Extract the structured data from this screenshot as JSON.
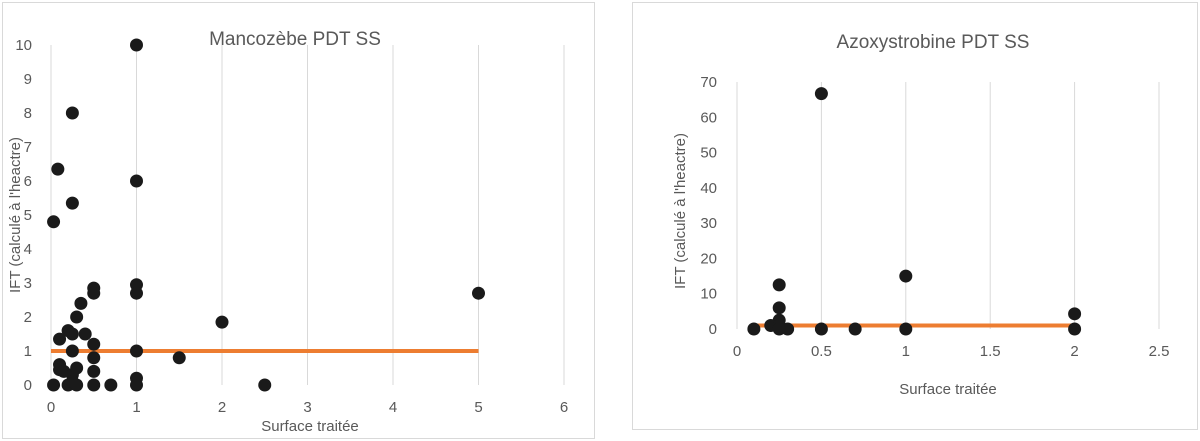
{
  "chart_data": [
    {
      "type": "scatter",
      "title": "Mancozèbe PDT SS",
      "xlabel": "Surface traitée",
      "ylabel": "IFT (calculé à l'heactre)",
      "xlim": [
        0,
        6
      ],
      "ylim": [
        0,
        10
      ],
      "xticks": [
        "0",
        "1",
        "2",
        "3",
        "4",
        "5",
        "6"
      ],
      "yticks": [
        "0",
        "1",
        "2",
        "3",
        "4",
        "5",
        "6",
        "7",
        "8",
        "9",
        "10"
      ],
      "grid": "vertical",
      "marker_color": "#1a1a1a",
      "line_color": "#ed7d31",
      "reference_line": {
        "x": [
          0,
          5
        ],
        "y": [
          1,
          1
        ]
      },
      "points": [
        {
          "x": 0.03,
          "y": 4.8
        },
        {
          "x": 0.03,
          "y": 0
        },
        {
          "x": 0.08,
          "y": 6.35
        },
        {
          "x": 0.1,
          "y": 0.6
        },
        {
          "x": 0.1,
          "y": 0.45
        },
        {
          "x": 0.1,
          "y": 1.35
        },
        {
          "x": 0.15,
          "y": 0.4
        },
        {
          "x": 0.2,
          "y": 1.6
        },
        {
          "x": 0.2,
          "y": 0
        },
        {
          "x": 0.25,
          "y": 8
        },
        {
          "x": 0.25,
          "y": 5.35
        },
        {
          "x": 0.25,
          "y": 1.5
        },
        {
          "x": 0.25,
          "y": 1
        },
        {
          "x": 0.25,
          "y": 0.3
        },
        {
          "x": 0.25,
          "y": 0.1
        },
        {
          "x": 0.3,
          "y": 2
        },
        {
          "x": 0.3,
          "y": 0.5
        },
        {
          "x": 0.3,
          "y": 0
        },
        {
          "x": 0.35,
          "y": 2.4
        },
        {
          "x": 0.4,
          "y": 1.5
        },
        {
          "x": 0.5,
          "y": 2.85
        },
        {
          "x": 0.5,
          "y": 2.7
        },
        {
          "x": 0.5,
          "y": 1.2
        },
        {
          "x": 0.5,
          "y": 0.8
        },
        {
          "x": 0.5,
          "y": 0.4
        },
        {
          "x": 0.5,
          "y": 0
        },
        {
          "x": 0.7,
          "y": 0
        },
        {
          "x": 1,
          "y": 10
        },
        {
          "x": 1,
          "y": 6
        },
        {
          "x": 1,
          "y": 2.95
        },
        {
          "x": 1,
          "y": 2.7
        },
        {
          "x": 1,
          "y": 1
        },
        {
          "x": 1,
          "y": 0.2
        },
        {
          "x": 1,
          "y": 0
        },
        {
          "x": 1.5,
          "y": 0.8
        },
        {
          "x": 2,
          "y": 1.85
        },
        {
          "x": 2.5,
          "y": 0
        },
        {
          "x": 5,
          "y": 2.7
        }
      ]
    },
    {
      "type": "scatter",
      "title": "Azoxystrobine PDT SS",
      "xlabel": "Surface traitée",
      "ylabel": "IFT (calculé à l'heactre)",
      "xlim": [
        0,
        2.5
      ],
      "ylim": [
        0,
        70
      ],
      "xticks": [
        "0",
        "0.5",
        "1",
        "1.5",
        "2",
        "2.5"
      ],
      "yticks": [
        "0",
        "10",
        "20",
        "30",
        "40",
        "50",
        "60",
        "70"
      ],
      "grid": "vertical",
      "marker_color": "#1a1a1a",
      "line_color": "#ed7d31",
      "reference_line": {
        "x": [
          0.1,
          2
        ],
        "y": [
          1,
          1
        ]
      },
      "points": [
        {
          "x": 0.1,
          "y": 0
        },
        {
          "x": 0.2,
          "y": 1
        },
        {
          "x": 0.25,
          "y": 12.5
        },
        {
          "x": 0.25,
          "y": 6
        },
        {
          "x": 0.25,
          "y": 2.5
        },
        {
          "x": 0.25,
          "y": 1
        },
        {
          "x": 0.25,
          "y": 0
        },
        {
          "x": 0.3,
          "y": 0
        },
        {
          "x": 0.5,
          "y": 66.7
        },
        {
          "x": 0.5,
          "y": 0
        },
        {
          "x": 0.7,
          "y": 0
        },
        {
          "x": 1,
          "y": 15
        },
        {
          "x": 1,
          "y": 0
        },
        {
          "x": 2,
          "y": 4.3
        },
        {
          "x": 2,
          "y": 0
        }
      ]
    }
  ]
}
